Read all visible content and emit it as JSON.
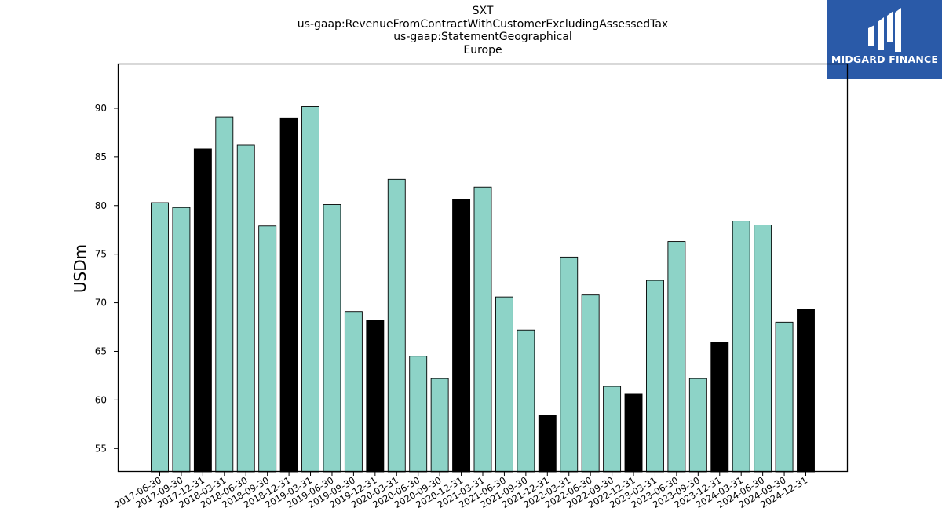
{
  "titles": [
    "SXT",
    "us-gaap:RevenueFromContractWithCustomerExcludingAssessedTax",
    "us-gaap:StatementGeographical",
    "Europe"
  ],
  "logo": {
    "name": "MIDGARD FINANCE"
  },
  "colors": {
    "bar": "#8dd3c7",
    "highlight": "#000000",
    "logo_bg": "#2a5aa8"
  },
  "chart_data": {
    "type": "bar",
    "title": "SXT\nus-gaap:RevenueFromContractWithCustomerExcludingAssessedTax\nus-gaap:StatementGeographical\nEurope",
    "xlabel": "",
    "ylabel": "USDm",
    "ylim": [
      52.6,
      94.6
    ],
    "yticks": [
      55,
      60,
      65,
      70,
      75,
      80,
      85,
      90
    ],
    "grid": false,
    "legend": "none",
    "categories": [
      "2017-06-30",
      "2017-09-30",
      "2017-12-31",
      "2018-03-31",
      "2018-06-30",
      "2018-09-30",
      "2018-12-31",
      "2019-03-31",
      "2019-06-30",
      "2019-09-30",
      "2019-12-31",
      "2020-03-31",
      "2020-06-30",
      "2020-09-30",
      "2020-12-31",
      "2021-03-31",
      "2021-06-30",
      "2021-09-30",
      "2021-12-31",
      "2022-03-31",
      "2022-06-30",
      "2022-09-30",
      "2022-12-31",
      "2023-03-31",
      "2023-06-30",
      "2023-09-30",
      "2023-12-31",
      "2024-03-31",
      "2024-06-30",
      "2024-09-30",
      "2024-12-31"
    ],
    "values": [
      80.3,
      79.8,
      85.8,
      89.1,
      86.2,
      77.9,
      89.0,
      90.2,
      80.1,
      69.1,
      68.2,
      82.7,
      64.5,
      62.2,
      80.6,
      81.9,
      70.6,
      67.2,
      58.4,
      74.7,
      70.8,
      61.4,
      60.6,
      72.3,
      76.3,
      62.2,
      65.9,
      78.4,
      78.0,
      68.0,
      69.3
    ],
    "highlighted": [
      "2017-12-31",
      "2018-12-31",
      "2019-12-31",
      "2020-12-31",
      "2021-12-31",
      "2022-12-31",
      "2023-12-31",
      "2024-12-31"
    ]
  }
}
